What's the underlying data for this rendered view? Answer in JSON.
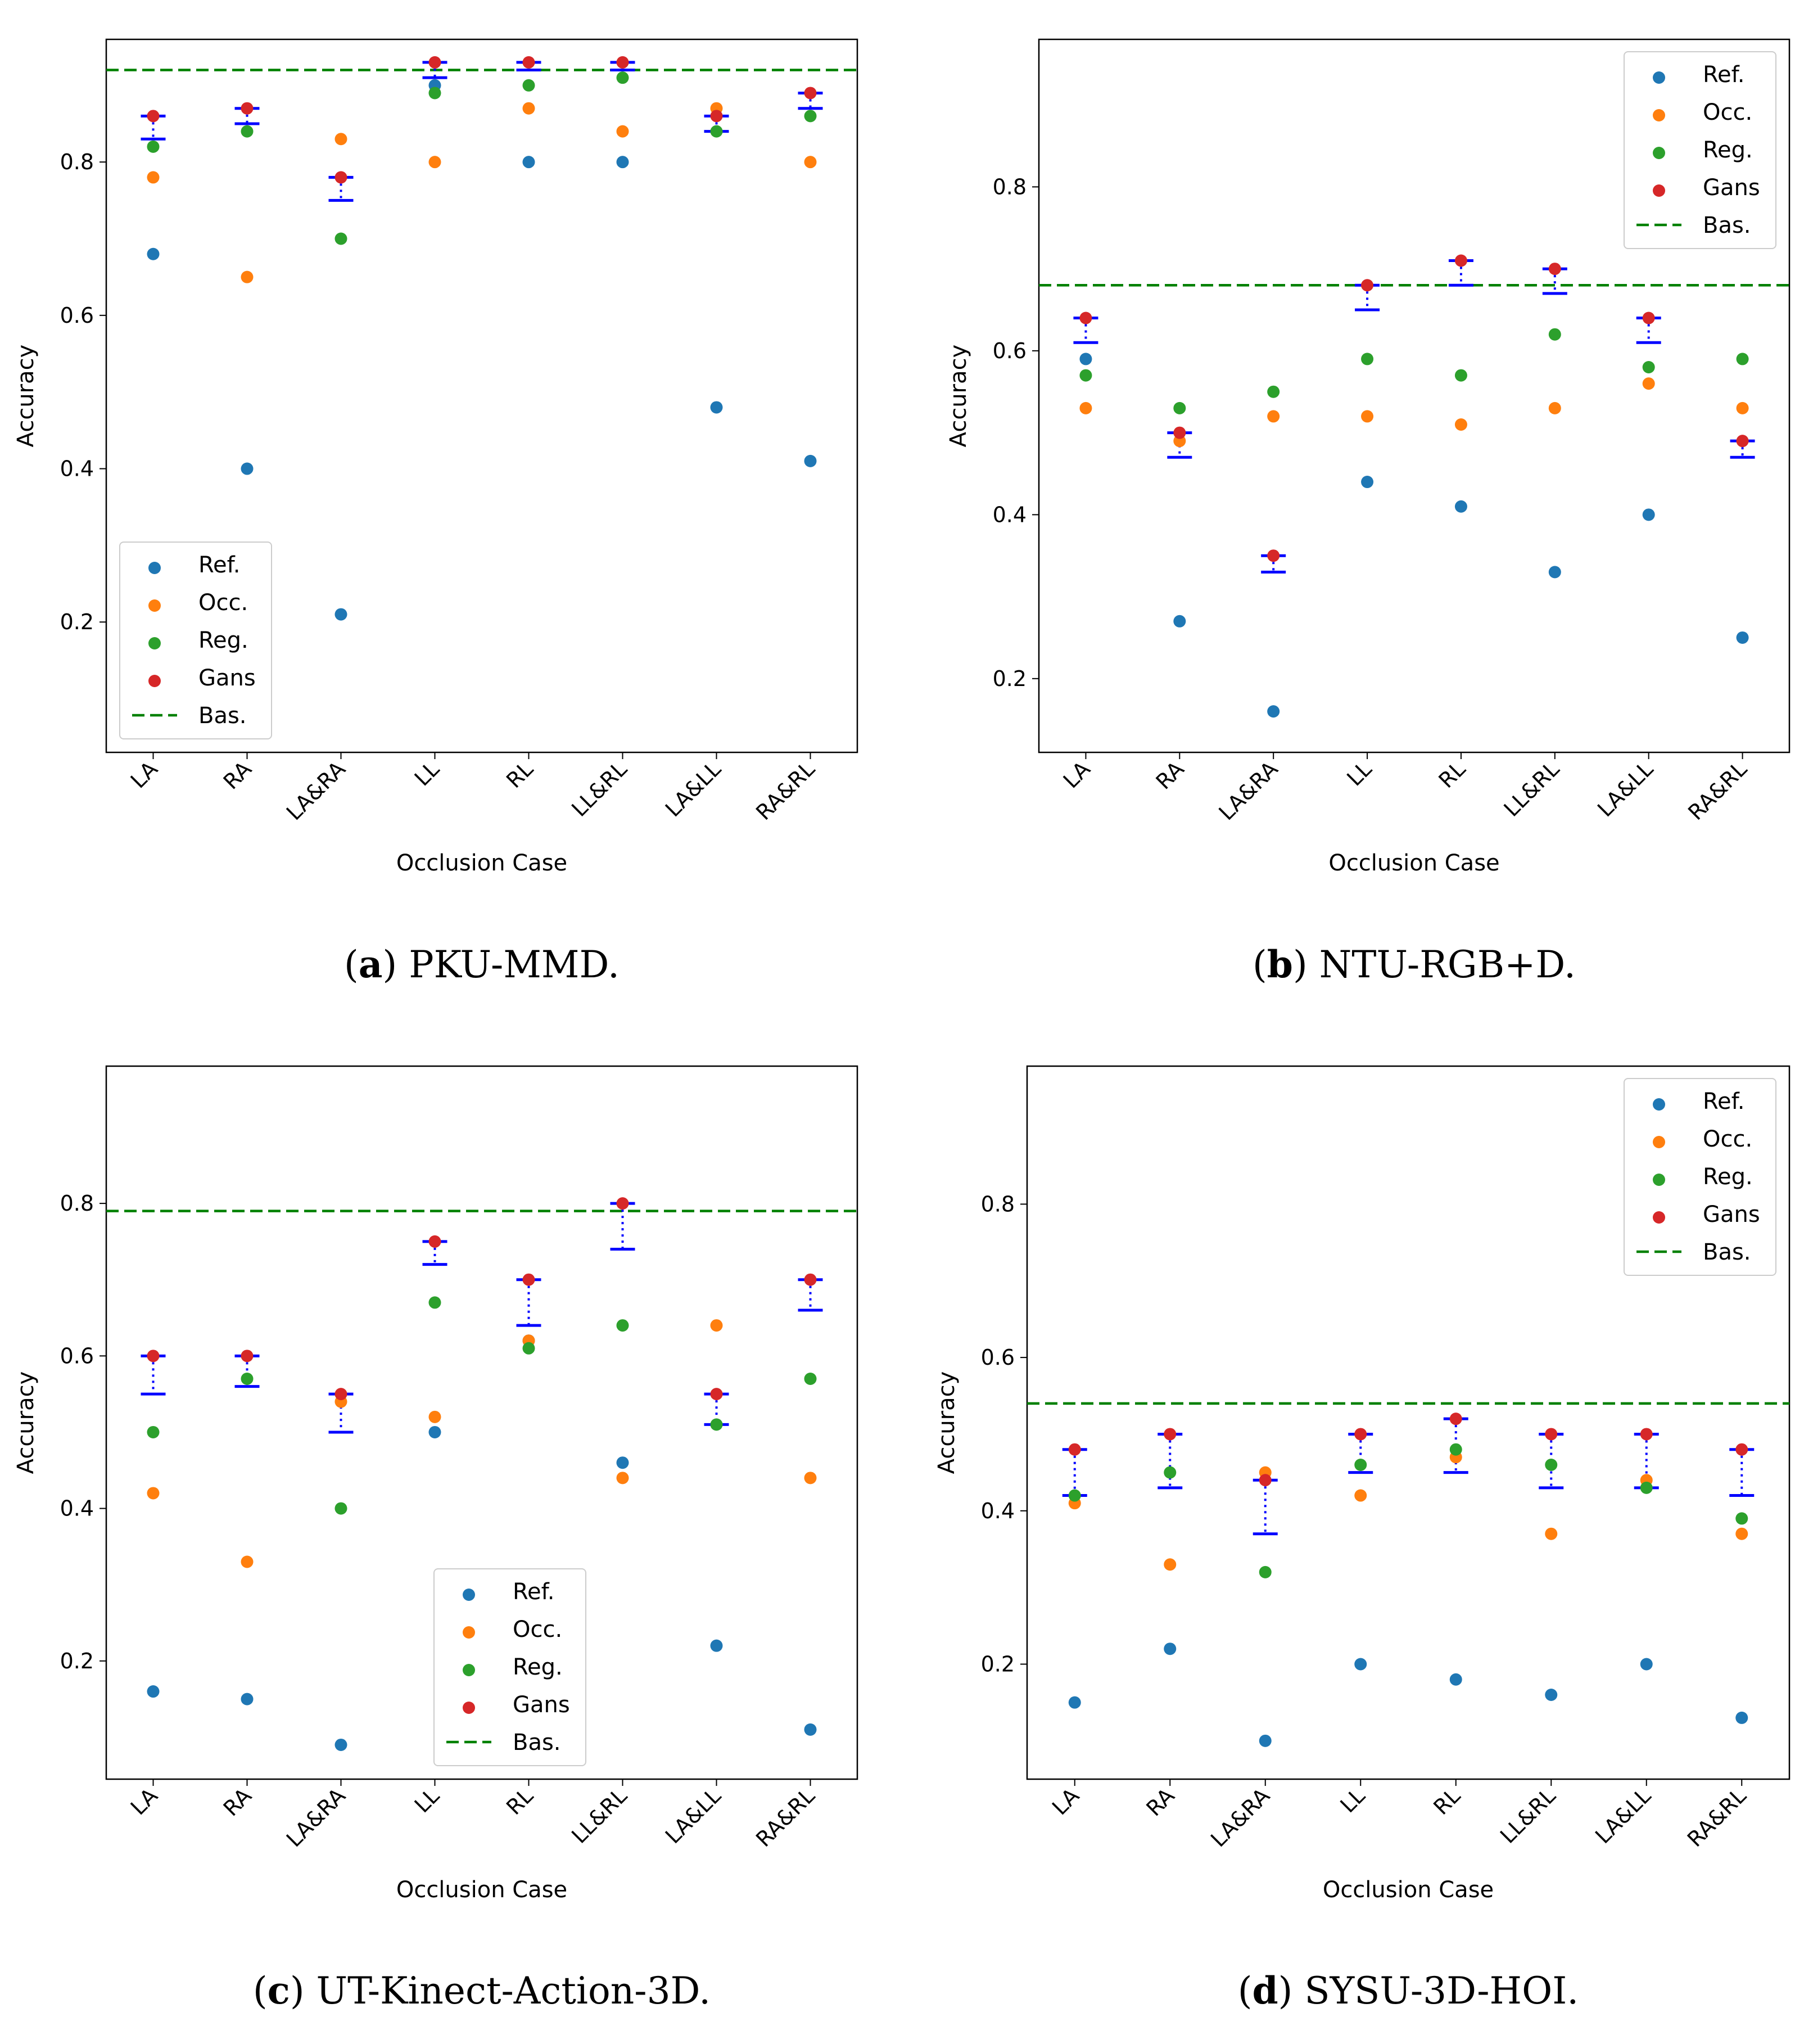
{
  "figure": {
    "legend_labels": [
      "Ref.",
      "Occ.",
      "Reg.",
      "Gans",
      "Bas."
    ],
    "colors": {
      "ref": "#1f77b4",
      "occ": "#ff7f0e",
      "reg": "#2ca02c",
      "gans": "#d62728",
      "bas": "#008000",
      "improvement": "#0000ff"
    }
  },
  "chart_data": [
    {
      "type": "scatter",
      "caption_letter": "a",
      "caption_text": ") PKU-MMD.",
      "xlabel": "Occlusion Case",
      "ylabel": "Accuracy",
      "categories": [
        "LA",
        "RA",
        "LA&RA",
        "LL",
        "RL",
        "LL&RL",
        "LA&LL",
        "RA&RL"
      ],
      "ylim": [
        0.03,
        0.96
      ],
      "yticks": [
        0.2,
        0.4,
        0.6,
        0.8
      ],
      "legend_position": "lower-left",
      "baseline": 0.92,
      "series": [
        {
          "name": "Ref.",
          "values": [
            0.68,
            0.4,
            0.21,
            0.9,
            0.8,
            0.8,
            0.48,
            0.41
          ]
        },
        {
          "name": "Occ.",
          "values": [
            0.78,
            0.65,
            0.83,
            0.8,
            0.87,
            0.84,
            0.87,
            0.8
          ]
        },
        {
          "name": "Reg.",
          "values": [
            0.82,
            0.84,
            0.7,
            0.89,
            0.9,
            0.91,
            0.84,
            0.86
          ]
        },
        {
          "name": "Gans",
          "values": [
            0.86,
            0.87,
            0.78,
            0.93,
            0.93,
            0.93,
            0.86,
            0.89
          ]
        }
      ],
      "improvement_low": [
        0.83,
        0.85,
        0.75,
        0.91,
        0.92,
        0.92,
        0.84,
        0.87
      ]
    },
    {
      "type": "scatter",
      "caption_letter": "b",
      "caption_text": ") NTU-RGB+D.",
      "xlabel": "Occlusion Case",
      "ylabel": "Accuracy",
      "categories": [
        "LA",
        "RA",
        "LA&RA",
        "LL",
        "RL",
        "LL&RL",
        "LA&LL",
        "RA&RL"
      ],
      "ylim": [
        0.11,
        0.98
      ],
      "yticks": [
        0.2,
        0.4,
        0.6,
        0.8
      ],
      "legend_position": "upper-right",
      "baseline": 0.68,
      "series": [
        {
          "name": "Ref.",
          "values": [
            0.59,
            0.27,
            0.16,
            0.44,
            0.41,
            0.33,
            0.4,
            0.25
          ]
        },
        {
          "name": "Occ.",
          "values": [
            0.53,
            0.49,
            0.52,
            0.52,
            0.51,
            0.53,
            0.56,
            0.53
          ]
        },
        {
          "name": "Reg.",
          "values": [
            0.57,
            0.53,
            0.55,
            0.59,
            0.57,
            0.62,
            0.58,
            0.59
          ]
        },
        {
          "name": "Gans",
          "values": [
            0.64,
            0.5,
            0.35,
            0.68,
            0.71,
            0.7,
            0.64,
            0.49
          ]
        }
      ],
      "improvement_low": [
        0.61,
        0.47,
        0.33,
        0.65,
        0.68,
        0.67,
        0.61,
        0.47
      ]
    },
    {
      "type": "scatter",
      "caption_letter": "c",
      "caption_text": ") UT-Kinect-Action-3D.",
      "xlabel": "Occlusion Case",
      "ylabel": "Accuracy",
      "categories": [
        "LA",
        "RA",
        "LA&RA",
        "LL",
        "RL",
        "LL&RL",
        "LA&LL",
        "RA&RL"
      ],
      "ylim": [
        0.045,
        0.98
      ],
      "yticks": [
        0.2,
        0.4,
        0.6,
        0.8
      ],
      "legend_position": "lower-center",
      "baseline": 0.79,
      "series": [
        {
          "name": "Ref.",
          "values": [
            0.16,
            0.15,
            0.09,
            0.5,
            0.62,
            0.46,
            0.22,
            0.11
          ]
        },
        {
          "name": "Occ.",
          "values": [
            0.42,
            0.33,
            0.54,
            0.52,
            0.62,
            0.44,
            0.64,
            0.44
          ]
        },
        {
          "name": "Reg.",
          "values": [
            0.5,
            0.57,
            0.4,
            0.67,
            0.61,
            0.64,
            0.51,
            0.57
          ]
        },
        {
          "name": "Gans",
          "values": [
            0.6,
            0.6,
            0.55,
            0.75,
            0.7,
            0.8,
            0.55,
            0.7
          ]
        }
      ],
      "improvement_low": [
        0.55,
        0.56,
        0.5,
        0.72,
        0.64,
        0.74,
        0.51,
        0.66
      ]
    },
    {
      "type": "scatter",
      "caption_letter": "d",
      "caption_text": ") SYSU-3D-HOI.",
      "xlabel": "Occlusion Case",
      "ylabel": "Accuracy",
      "categories": [
        "LA",
        "RA",
        "LA&RA",
        "LL",
        "RL",
        "LL&RL",
        "LA&LL",
        "RA&RL"
      ],
      "ylim": [
        0.05,
        0.98
      ],
      "yticks": [
        0.2,
        0.4,
        0.6,
        0.8
      ],
      "legend_position": "upper-right",
      "baseline": 0.54,
      "series": [
        {
          "name": "Ref.",
          "values": [
            0.15,
            0.22,
            0.1,
            0.2,
            0.18,
            0.16,
            0.2,
            0.13
          ]
        },
        {
          "name": "Occ.",
          "values": [
            0.41,
            0.33,
            0.45,
            0.42,
            0.47,
            0.37,
            0.44,
            0.37
          ]
        },
        {
          "name": "Reg.",
          "values": [
            0.42,
            0.45,
            0.32,
            0.46,
            0.48,
            0.46,
            0.43,
            0.39
          ]
        },
        {
          "name": "Gans",
          "values": [
            0.48,
            0.5,
            0.44,
            0.5,
            0.52,
            0.5,
            0.5,
            0.48
          ]
        }
      ],
      "improvement_low": [
        0.42,
        0.43,
        0.37,
        0.45,
        0.45,
        0.43,
        0.43,
        0.42
      ]
    }
  ]
}
